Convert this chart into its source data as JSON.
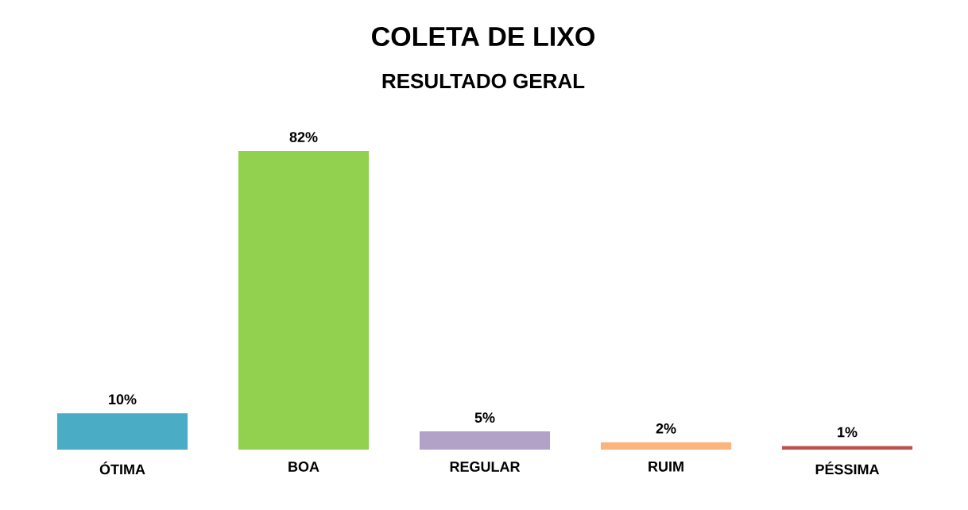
{
  "chart_data": {
    "type": "bar",
    "title": "COLETA DE LIXO",
    "subtitle": "RESULTADO GERAL",
    "categories": [
      "ÓTIMA",
      "BOA",
      "REGULAR",
      "RUIM",
      "PÉSSIMA"
    ],
    "values": [
      10,
      82,
      5,
      2,
      1
    ],
    "value_labels": [
      "10%",
      "82%",
      "5%",
      "2%",
      "1%"
    ],
    "colors": [
      "#4bacc6",
      "#92d050",
      "#b3a2c7",
      "#fab47c",
      "#c0504d"
    ]
  }
}
